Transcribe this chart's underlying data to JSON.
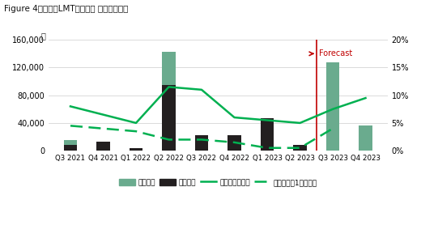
{
  "title": "Figure 4：中部圈LMT物流施設 需給バランス",
  "categories": [
    "Q3 2021",
    "Q4 2021",
    "Q1 2022",
    "Q2 2022",
    "Q3 2022",
    "Q4 2022",
    "Q1 2023",
    "Q2 2023",
    "Q3 2023",
    "Q4 2023"
  ],
  "supply": [
    15000,
    0,
    2000,
    143000,
    18000,
    8000,
    38000,
    0,
    128000,
    36000
  ],
  "demand": [
    8000,
    13000,
    4000,
    95000,
    22000,
    22000,
    47000,
    8000,
    0,
    0
  ],
  "vacancy_total": [
    8.0,
    6.5,
    5.0,
    11.5,
    11.0,
    6.0,
    5.5,
    5.0,
    7.5,
    9.5
  ],
  "vacancy_1yr": [
    4.5,
    4.0,
    3.5,
    2.0,
    2.0,
    1.5,
    0.5,
    0.5,
    4.0,
    null
  ],
  "ylim_left": [
    0,
    160000
  ],
  "ylim_right": [
    0,
    20
  ],
  "yticks_left": [
    0,
    40000,
    80000,
    120000,
    160000
  ],
  "yticks_right": [
    0,
    5,
    10,
    15,
    20
  ],
  "forecast_index": 8,
  "supply_color": "#6aab8e",
  "demand_color": "#231f20",
  "vacancy_total_color": "#00b050",
  "vacancy_1yr_color": "#00b050",
  "forecast_line_color": "#c00000",
  "background_color": "#ffffff",
  "legend_labels": [
    "新規供給",
    "新規需要",
    "空室率（全体）",
    "空室率（笢1年以上）"
  ],
  "ylabel_left": "嵪",
  "forecast_label": "Forecast",
  "bar_width": 0.4
}
